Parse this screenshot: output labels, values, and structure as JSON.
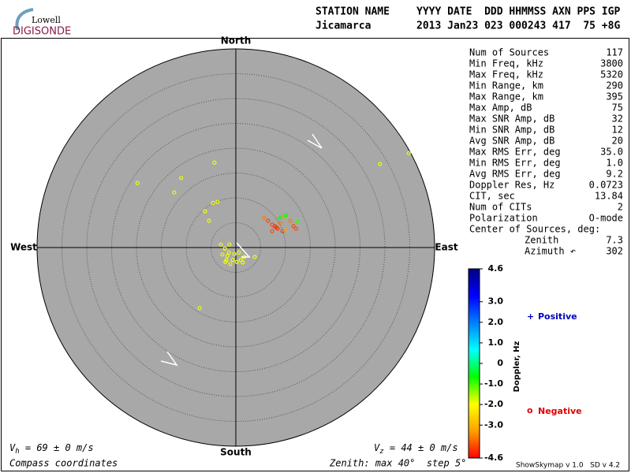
{
  "logo": {
    "line1": "Lowell",
    "line2": "DIGISONDE"
  },
  "header": {
    "row1": [
      "STATION NAME",
      "YYYY DATE  DDD HHMMSS AXN PPS IGP"
    ],
    "row2": [
      "Jicamarca",
      "2013 Jan23 023 000243 417  75 +8G"
    ]
  },
  "chart_data": {
    "type": "polar-scatter",
    "compass": {
      "north": "North",
      "south": "South",
      "west": "West",
      "east": "East"
    },
    "rlim": [
      0,
      40
    ],
    "rstep": 5,
    "points": {
      "x": [
        -3.0,
        -2.2,
        -1.4,
        -1.7,
        -0.6,
        0.2,
        1.0,
        1.7,
        -1.1,
        -1.9,
        -0.3,
        0.6,
        -2.7,
        1.4,
        3.8,
        -1.3,
        -2.1,
        -19.8,
        -11.0,
        -12.4,
        -4.3,
        -6.2,
        -4.6,
        -3.7,
        -5.4,
        -7.3,
        29.0,
        34.8,
        8.1,
        8.4,
        7.8,
        7.3,
        8.9,
        6.5,
        9.7,
        11.0,
        11.6,
        12.1,
        9.4,
        5.7,
        7.3,
        10.0,
        8.9,
        12.5,
        10.0
      ],
      "y": [
        0.6,
        -0.2,
        -1.0,
        -1.7,
        -2.5,
        -2.9,
        -2.5,
        -1.9,
        -3.3,
        -2.5,
        -1.3,
        -1.0,
        -1.4,
        -3.0,
        -1.9,
        0.6,
        -2.9,
        13.0,
        14.0,
        11.1,
        17.1,
        7.3,
        9.0,
        9.2,
        5.4,
        -12.2,
        16.8,
        19.0,
        4.1,
        3.8,
        4.3,
        4.6,
        4.9,
        5.4,
        6.2,
        5.4,
        4.3,
        3.8,
        3.3,
        6.0,
        3.3,
        3.5,
        6.0,
        5.2,
        6.5
      ],
      "doppler": [
        -1.9,
        -1.9,
        -1.9,
        -1.9,
        -1.9,
        -1.9,
        -1.9,
        -1.9,
        -1.9,
        -1.9,
        -1.9,
        -1.9,
        -1.9,
        -1.9,
        -1.9,
        -1.9,
        -1.9,
        -1.9,
        -1.9,
        -1.9,
        -1.9,
        -1.9,
        -1.9,
        -1.9,
        -1.9,
        -1.9,
        -1.9,
        -1.9,
        -4.2,
        -4.2,
        -4.2,
        -4.0,
        -3.6,
        -4.0,
        -3.3,
        -3.6,
        -4.0,
        -4.0,
        -4.2,
        -3.6,
        -4.0,
        -3.3,
        -0.6,
        -0.9,
        -0.6
      ]
    }
  },
  "stats": [
    [
      "Num of Sources",
      "117"
    ],
    [
      "Min Freq, kHz",
      "3800"
    ],
    [
      "Max Freq, kHz",
      "5320"
    ],
    [
      "Min Range, km",
      "290"
    ],
    [
      "Max Range, km",
      "395"
    ],
    [
      "Max Amp, dB",
      "75"
    ],
    [
      "Max SNR Amp, dB",
      "32"
    ],
    [
      "Min SNR Amp, dB",
      "12"
    ],
    [
      "Avg SNR Amp, dB",
      "20"
    ],
    [
      "Max RMS Err, deg",
      "35.0"
    ],
    [
      "Min RMS Err, deg",
      "1.0"
    ],
    [
      "Avg RMS Err, deg",
      "9.2"
    ],
    [
      "Doppler Res, Hz",
      "0.0723"
    ],
    [
      "CIT, sec",
      "13.84"
    ],
    [
      "Num of CITs",
      "2"
    ],
    [
      "Polarization",
      "O-mode"
    ]
  ],
  "center": {
    "title": "Center of Sources, deg:",
    "rows": [
      [
        "Zenith",
        "7.3"
      ],
      [
        "Azimuth ↶",
        "302"
      ]
    ]
  },
  "colorbar": {
    "label": "Doppler, Hz",
    "lim": [
      -4.6,
      4.6
    ],
    "ticks": [
      4.6,
      {
        "value": 3,
        "label": "3.0"
      },
      {
        "value": 2,
        "label": "2.0"
      },
      {
        "value": 1,
        "label": "1.0"
      },
      0,
      {
        "value": -1,
        "label": "-1.0"
      },
      {
        "value": -2,
        "label": "-2.0"
      },
      {
        "value": -3,
        "label": "-3.0"
      },
      -4.6
    ],
    "colors": [
      "#000080",
      "#0000ff",
      "#0080ff",
      "#00ffff",
      "#00ff00",
      "#ffff00",
      "#ffa000",
      "#ff0000"
    ]
  },
  "legend": {
    "positive": {
      "symbol": "+",
      "text": "Positive",
      "color": "#0000c0"
    },
    "negative": {
      "symbol": "o",
      "text": "Negative",
      "color": "#e00000"
    }
  },
  "velocity": {
    "vh": [
      "V",
      "h",
      " = 69 ± 0 m/s"
    ],
    "vz": [
      "V",
      "z",
      " = 44 ± 0 m/s"
    ]
  },
  "footer": {
    "coords": "Compass coordinates",
    "zenith": "Zenith: max 40°  step 5°",
    "version": "ShowSkymap v 1.0   SD v 4.2"
  }
}
